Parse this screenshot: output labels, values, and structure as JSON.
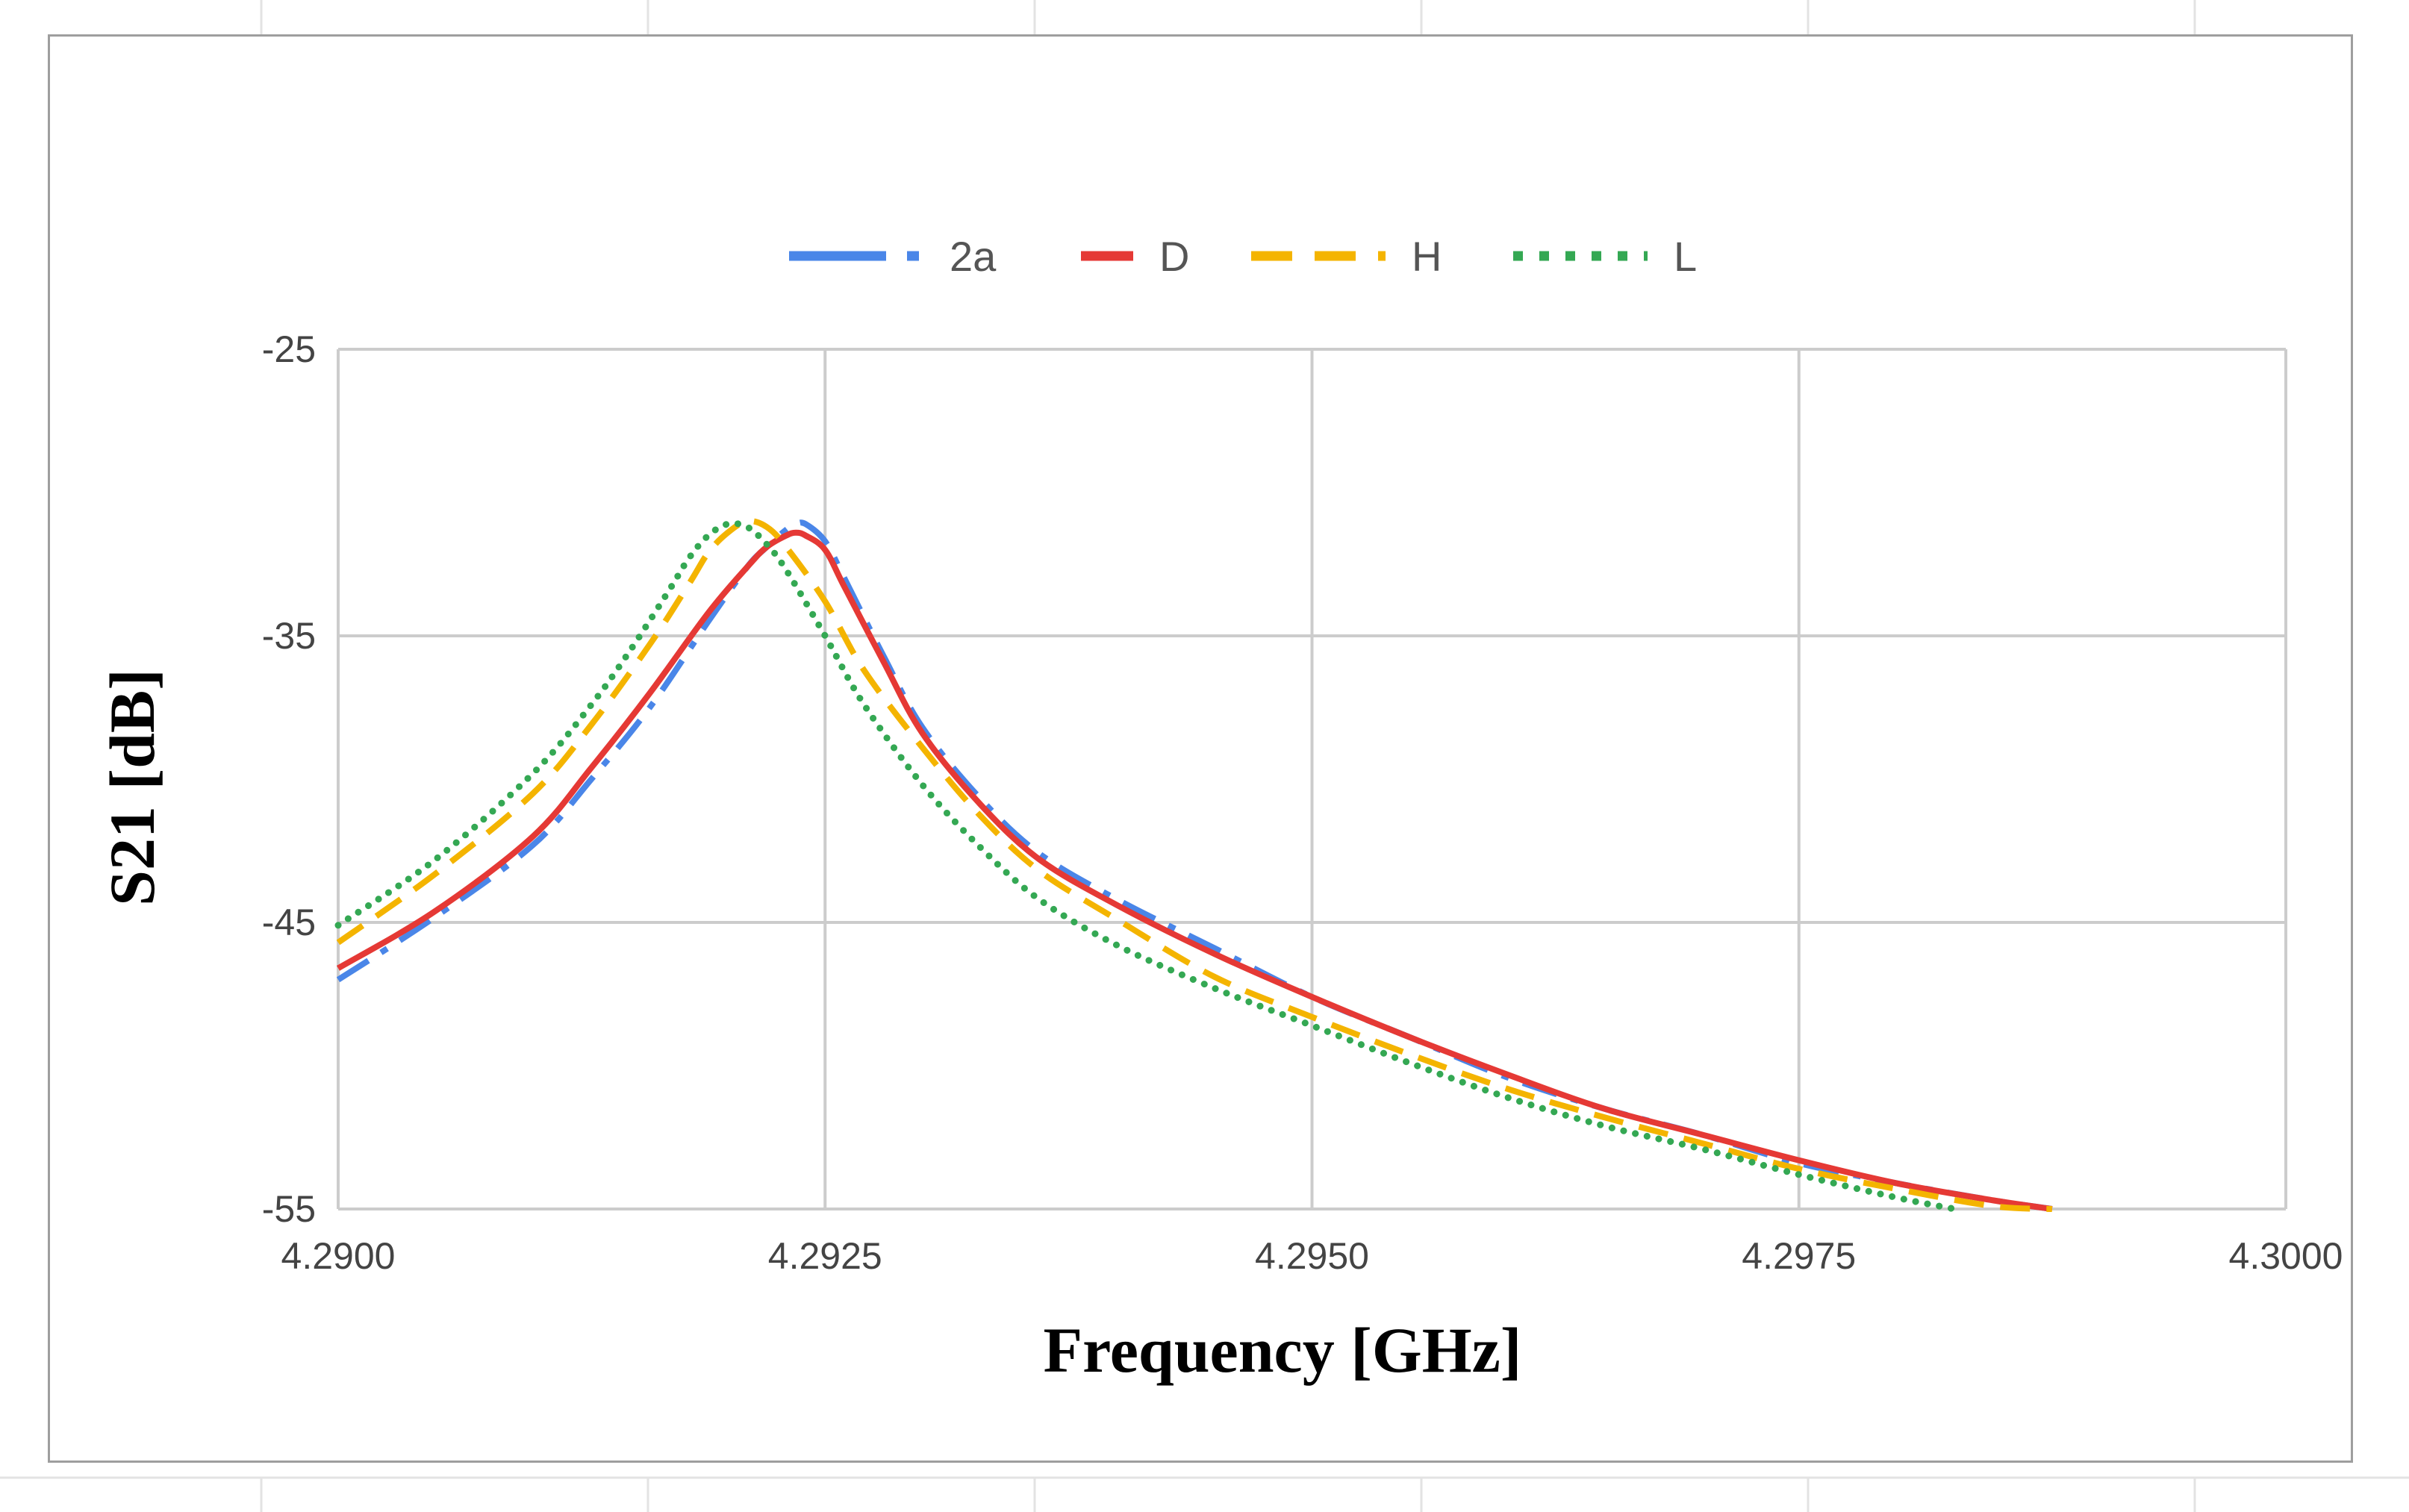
{
  "chart_data": {
    "type": "line",
    "title": "",
    "xlabel": "Frequency [GHz]",
    "ylabel": "S21 [dB]",
    "xlim": [
      4.29,
      4.3
    ],
    "ylim": [
      -55,
      -25
    ],
    "xticks": [
      "4.2900",
      "4.2925",
      "4.2950",
      "4.2975",
      "4.3000"
    ],
    "xtick_values": [
      4.29,
      4.2925,
      4.295,
      4.2975,
      4.3
    ],
    "yticks": [
      "-25",
      "-35",
      "-45",
      "-55"
    ],
    "ytick_values": [
      -25,
      -35,
      -45,
      -55
    ],
    "grid": true,
    "legend_position": "top-center",
    "series": [
      {
        "name": "2a",
        "color": "#4a86e8",
        "style": "dash-dot",
        "x": [
          4.29,
          4.2905,
          4.291,
          4.2913,
          4.2916,
          4.2919,
          4.2921,
          4.2922,
          4.2923,
          4.29235,
          4.2924,
          4.2925,
          4.2926,
          4.2928,
          4.293,
          4.2933,
          4.2936,
          4.294,
          4.2945,
          4.295,
          4.2955,
          4.296,
          4.2965,
          4.297,
          4.2975,
          4.298,
          4.2985,
          4.2988
        ],
        "y": [
          -47.0,
          -44.8,
          -42.3,
          -40.0,
          -37.5,
          -34.5,
          -32.6,
          -31.9,
          -31.3,
          -31.1,
          -31.1,
          -31.7,
          -33.0,
          -35.7,
          -38.2,
          -40.7,
          -42.6,
          -44.2,
          -45.9,
          -47.6,
          -49.0,
          -50.4,
          -51.5,
          -52.4,
          -53.4,
          -54.1,
          -54.7,
          -55.0
        ]
      },
      {
        "name": "D",
        "color": "#e53935",
        "style": "solid",
        "x": [
          4.29,
          4.2905,
          4.291,
          4.2913,
          4.2916,
          4.2919,
          4.2921,
          4.2922,
          4.2923,
          4.29235,
          4.2924,
          4.2925,
          4.2926,
          4.2928,
          4.293,
          4.2933,
          4.2936,
          4.294,
          4.2945,
          4.295,
          4.2955,
          4.296,
          4.2965,
          4.297,
          4.2975,
          4.298,
          4.2985,
          4.2988
        ],
        "y": [
          -46.6,
          -44.6,
          -42.0,
          -39.6,
          -37.0,
          -34.2,
          -32.6,
          -31.9,
          -31.5,
          -31.4,
          -31.5,
          -32.0,
          -33.3,
          -35.9,
          -38.4,
          -40.9,
          -42.8,
          -44.4,
          -46.1,
          -47.6,
          -49.0,
          -50.3,
          -51.5,
          -52.4,
          -53.3,
          -54.1,
          -54.7,
          -55.0
        ]
      },
      {
        "name": "H",
        "color": "#f4b400",
        "style": "dashed",
        "x": [
          4.29,
          4.2905,
          4.291,
          4.2913,
          4.2916,
          4.2918,
          4.2919,
          4.292,
          4.2921,
          4.2922,
          4.2923,
          4.2925,
          4.2927,
          4.293,
          4.2933,
          4.2936,
          4.294,
          4.2945,
          4.295,
          4.2955,
          4.296,
          4.2965,
          4.297,
          4.2975,
          4.298,
          4.2985,
          4.2988
        ],
        "y": [
          -45.7,
          -43.3,
          -40.5,
          -38.1,
          -35.3,
          -33.2,
          -32.1,
          -31.4,
          -31.0,
          -31.2,
          -31.9,
          -33.8,
          -36.2,
          -38.9,
          -41.3,
          -43.2,
          -44.9,
          -46.9,
          -48.3,
          -49.6,
          -50.8,
          -51.8,
          -52.7,
          -53.6,
          -54.3,
          -54.9,
          -55.0
        ]
      },
      {
        "name": "L",
        "color": "#34a853",
        "style": "dotted",
        "x": [
          4.29,
          4.2905,
          4.291,
          4.2913,
          4.2915,
          4.2917,
          4.2918,
          4.2919,
          4.292,
          4.2921,
          4.2922,
          4.2923,
          4.2925,
          4.2927,
          4.293,
          4.2933,
          4.2936,
          4.294,
          4.2945,
          4.295,
          4.2955,
          4.296,
          4.2965,
          4.297,
          4.2975,
          4.298,
          4.2983
        ],
        "y": [
          -45.1,
          -42.8,
          -39.8,
          -37.4,
          -35.5,
          -33.4,
          -32.3,
          -31.5,
          -31.1,
          -31.2,
          -31.8,
          -32.7,
          -35.0,
          -37.4,
          -40.2,
          -42.4,
          -44.2,
          -45.8,
          -47.3,
          -48.6,
          -49.9,
          -51.1,
          -52.1,
          -52.9,
          -53.8,
          -54.6,
          -55.0
        ]
      }
    ]
  }
}
